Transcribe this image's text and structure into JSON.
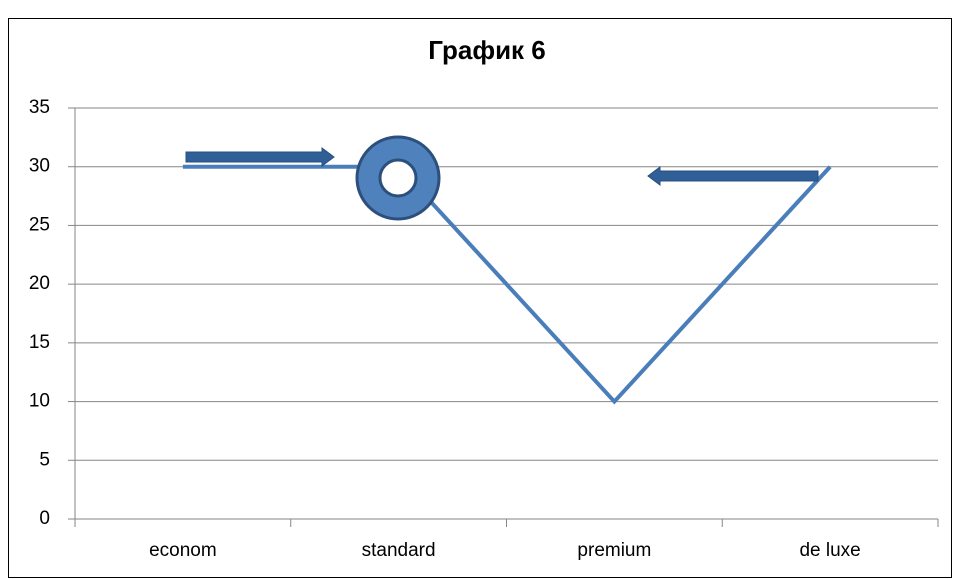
{
  "chart_data": {
    "type": "line",
    "title": "График 6",
    "categories": [
      "econom",
      "standard",
      "premium",
      "de luxe"
    ],
    "values": [
      30,
      30,
      10,
      30
    ],
    "color": "#4a7ebb",
    "ylim": [
      0,
      35
    ],
    "yticks": [
      0,
      5,
      10,
      15,
      20,
      25,
      30,
      35
    ],
    "grid": true
  }
}
